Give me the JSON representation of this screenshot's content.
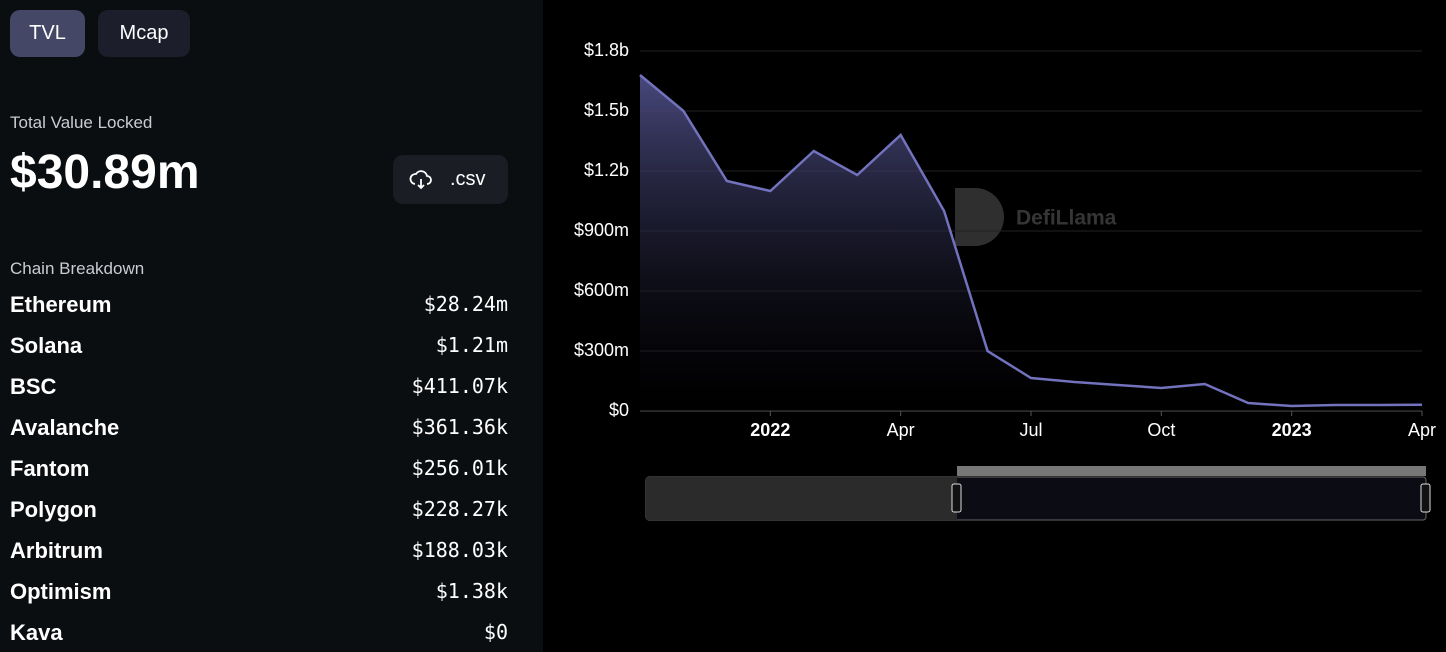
{
  "tabs": [
    "TVL",
    "Mcap"
  ],
  "summary": {
    "label": "Total Value Locked",
    "value": "$30.89m"
  },
  "csv_button": ".csv",
  "breakdown": {
    "title": "Chain Breakdown",
    "rows": [
      {
        "name": "Ethereum",
        "value": "$28.24m"
      },
      {
        "name": "Solana",
        "value": "$1.21m"
      },
      {
        "name": "BSC",
        "value": "$411.07k"
      },
      {
        "name": "Avalanche",
        "value": "$361.36k"
      },
      {
        "name": "Fantom",
        "value": "$256.01k"
      },
      {
        "name": "Polygon",
        "value": "$228.27k"
      },
      {
        "name": "Arbitrum",
        "value": "$188.03k"
      },
      {
        "name": "Optimism",
        "value": "$1.38k"
      },
      {
        "name": "Kava",
        "value": "$0"
      }
    ]
  },
  "watermark": "DefiLlama",
  "chart_data": {
    "type": "area",
    "color": "#7272bd",
    "grid": true,
    "x": [
      "2021-10",
      "2021-11",
      "2021-12",
      "2022-01",
      "2022-02",
      "2022-03",
      "2022-04",
      "2022-05",
      "2022-06",
      "2022-07",
      "2022-08",
      "2022-09",
      "2022-10",
      "2022-11",
      "2022-12",
      "2023-01",
      "2023-02",
      "2023-03",
      "2023-04"
    ],
    "values": [
      1680000000,
      1500000000,
      1150000000,
      1100000000,
      1300000000,
      1180000000,
      1380000000,
      1000000000,
      300000000,
      165000000,
      145000000,
      130000000,
      115000000,
      135000000,
      40000000,
      25000000,
      30000000,
      30000000,
      31000000
    ],
    "xlim": [
      "2021-10",
      "2023-04"
    ],
    "xticks": [
      {
        "value": "2022-01",
        "label": "2022"
      },
      {
        "value": "2022-04",
        "label": "Apr"
      },
      {
        "value": "2022-07",
        "label": "Jul"
      },
      {
        "value": "2022-10",
        "label": "Oct"
      },
      {
        "value": "2023-01",
        "label": "2023"
      },
      {
        "value": "2023-04",
        "label": "Apr"
      }
    ],
    "ylim": [
      0,
      1800000000
    ],
    "yticks": [
      {
        "value": 0,
        "label": "$0"
      },
      {
        "value": 300000000,
        "label": "$300m"
      },
      {
        "value": 600000000,
        "label": "$600m"
      },
      {
        "value": 900000000,
        "label": "$900m"
      },
      {
        "value": 1200000000,
        "label": "$1.2b"
      },
      {
        "value": 1500000000,
        "label": "$1.5b"
      },
      {
        "value": 1800000000,
        "label": "$1.8b"
      }
    ]
  }
}
